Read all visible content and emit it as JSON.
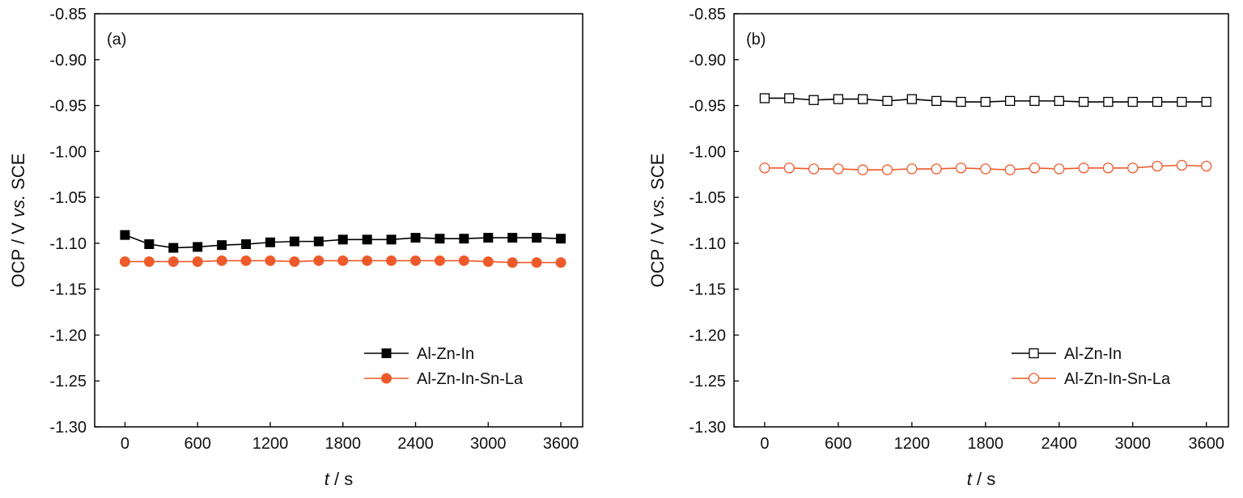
{
  "chart_data": [
    {
      "panel_label": "(a)",
      "type": "line",
      "xlabel_italic": "t",
      "xlabel_rest": " / s",
      "ylabel_pre": "OCP / V ",
      "ylabel_italic": "vs.",
      "ylabel_post": " SCE",
      "xlim": [
        -250,
        3780
      ],
      "ylim": [
        -1.3,
        -0.85
      ],
      "xticks": [
        0,
        600,
        1200,
        1800,
        2400,
        3000,
        3600
      ],
      "yticks": [
        -0.85,
        -0.9,
        -0.95,
        -1.0,
        -1.05,
        -1.1,
        -1.15,
        -1.2,
        -1.25,
        -1.3
      ],
      "xtick_labels": [
        "0",
        "600",
        "1200",
        "1800",
        "2400",
        "3000",
        "3600"
      ],
      "ytick_labels": [
        "-0.85",
        "-0.90",
        "-0.95",
        "-1.00",
        "-1.05",
        "-1.10",
        "-1.15",
        "-1.20",
        "-1.25",
        "-1.30"
      ],
      "grid": false,
      "legend_position": "bottom-right",
      "series": [
        {
          "name": "Al-Zn-In",
          "color": "#000000",
          "marker": "square-filled",
          "x": [
            0,
            200,
            400,
            600,
            800,
            1000,
            1200,
            1400,
            1600,
            1800,
            2000,
            2200,
            2400,
            2600,
            2800,
            3000,
            3200,
            3400,
            3600
          ],
          "y": [
            -1.091,
            -1.101,
            -1.105,
            -1.104,
            -1.102,
            -1.101,
            -1.099,
            -1.098,
            -1.098,
            -1.096,
            -1.096,
            -1.096,
            -1.094,
            -1.095,
            -1.095,
            -1.094,
            -1.094,
            -1.094,
            -1.095
          ]
        },
        {
          "name": "Al-Zn-In-Sn-La",
          "color": "#ef5a2a",
          "marker": "circle-filled",
          "x": [
            0,
            200,
            400,
            600,
            800,
            1000,
            1200,
            1400,
            1600,
            1800,
            2000,
            2200,
            2400,
            2600,
            2800,
            3000,
            3200,
            3400,
            3600
          ],
          "y": [
            -1.12,
            -1.12,
            -1.12,
            -1.12,
            -1.119,
            -1.119,
            -1.119,
            -1.12,
            -1.119,
            -1.119,
            -1.119,
            -1.119,
            -1.119,
            -1.119,
            -1.119,
            -1.12,
            -1.121,
            -1.121,
            -1.121
          ]
        }
      ]
    },
    {
      "panel_label": "(b)",
      "type": "line",
      "xlabel_italic": "t",
      "xlabel_rest": " / s",
      "ylabel_pre": "OCP / V ",
      "ylabel_italic": "vs.",
      "ylabel_post": " SCE",
      "xlim": [
        -250,
        3780
      ],
      "ylim": [
        -1.3,
        -0.85
      ],
      "xticks": [
        0,
        600,
        1200,
        1800,
        2400,
        3000,
        3600
      ],
      "yticks": [
        -0.85,
        -0.9,
        -0.95,
        -1.0,
        -1.05,
        -1.1,
        -1.15,
        -1.2,
        -1.25,
        -1.3
      ],
      "xtick_labels": [
        "0",
        "600",
        "1200",
        "1800",
        "2400",
        "3000",
        "3600"
      ],
      "ytick_labels": [
        "-0.85",
        "-0.90",
        "-0.95",
        "-1.00",
        "-1.05",
        "-1.10",
        "-1.15",
        "-1.20",
        "-1.25",
        "-1.30"
      ],
      "grid": false,
      "legend_position": "bottom-right",
      "series": [
        {
          "name": "Al-Zn-In",
          "color": "#000000",
          "marker": "square-open",
          "x": [
            0,
            200,
            400,
            600,
            800,
            1000,
            1200,
            1400,
            1600,
            1800,
            2000,
            2200,
            2400,
            2600,
            2800,
            3000,
            3200,
            3400,
            3600
          ],
          "y": [
            -0.942,
            -0.942,
            -0.944,
            -0.943,
            -0.943,
            -0.945,
            -0.943,
            -0.945,
            -0.946,
            -0.946,
            -0.945,
            -0.945,
            -0.945,
            -0.946,
            -0.946,
            -0.946,
            -0.946,
            -0.946,
            -0.946
          ]
        },
        {
          "name": "Al-Zn-In-Sn-La",
          "color": "#ef5a2a",
          "marker": "circle-open",
          "x": [
            0,
            200,
            400,
            600,
            800,
            1000,
            1200,
            1400,
            1600,
            1800,
            2000,
            2200,
            2400,
            2600,
            2800,
            3000,
            3200,
            3400,
            3600
          ],
          "y": [
            -1.018,
            -1.018,
            -1.019,
            -1.019,
            -1.02,
            -1.02,
            -1.019,
            -1.019,
            -1.018,
            -1.019,
            -1.02,
            -1.018,
            -1.019,
            -1.018,
            -1.018,
            -1.018,
            -1.016,
            -1.015,
            -1.016
          ]
        }
      ]
    }
  ]
}
